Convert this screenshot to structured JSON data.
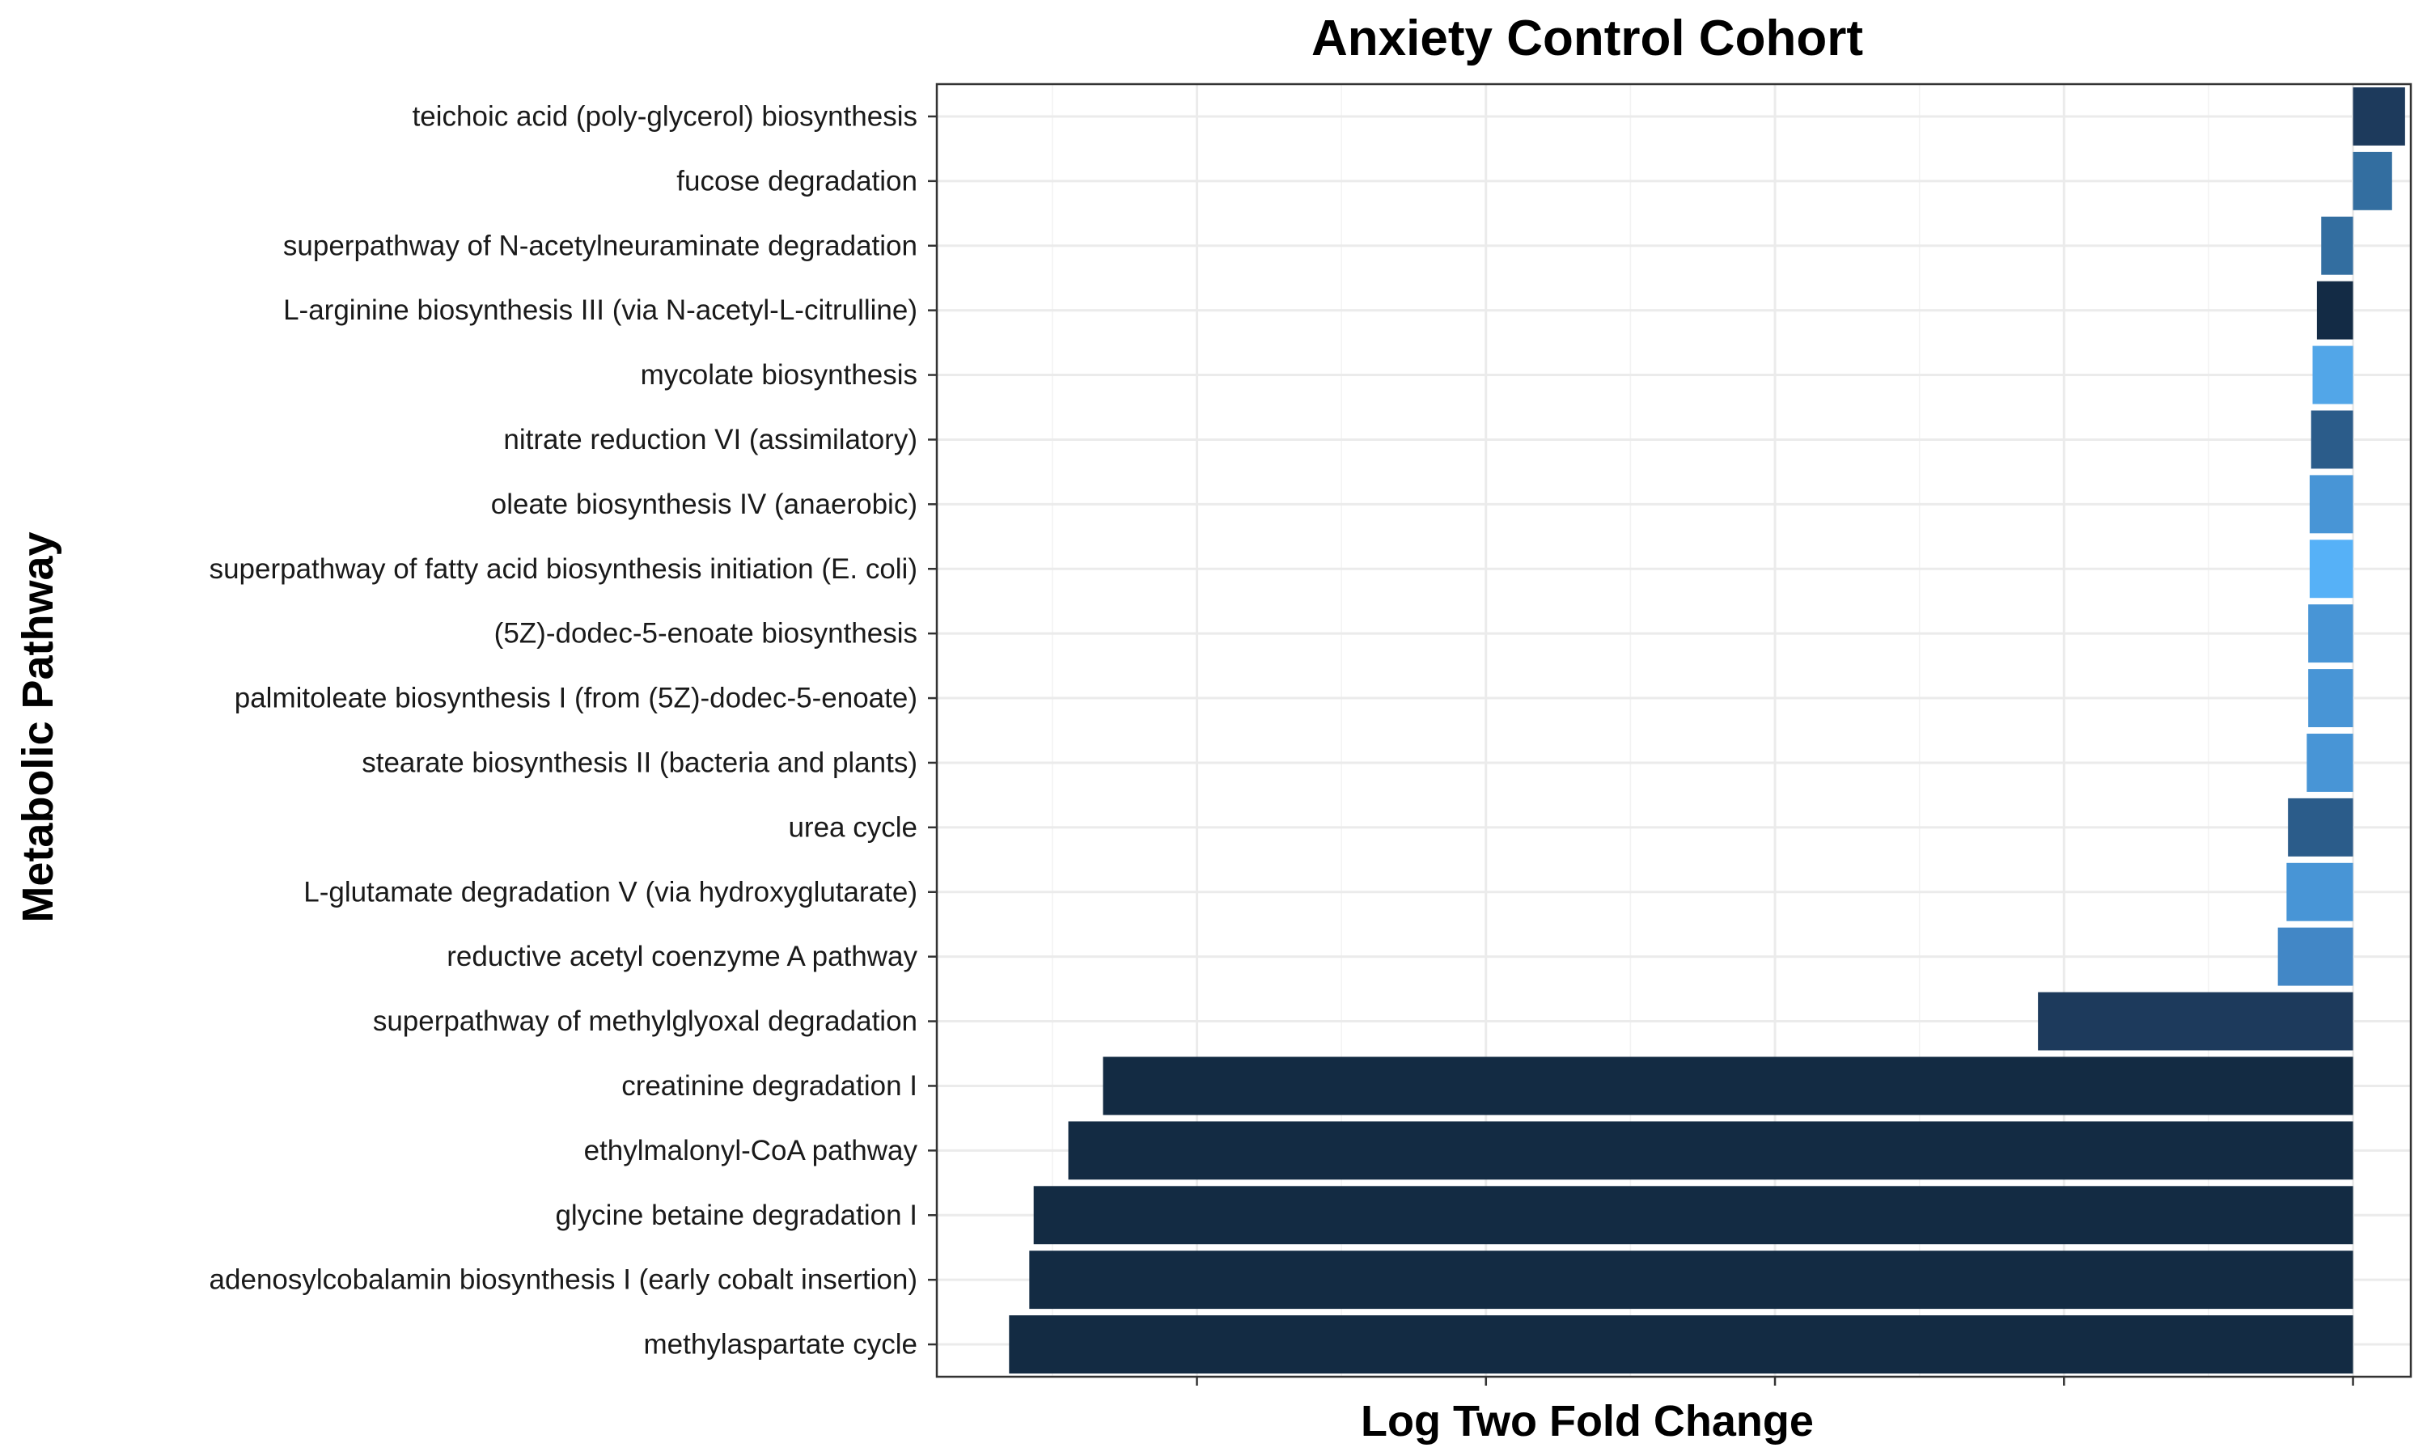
{
  "chart_data": {
    "type": "bar",
    "orientation": "horizontal",
    "title": "Anxiety Control Cohort",
    "xlabel": "Log Two Fold Change",
    "ylabel": "Metabolic Pathway",
    "xlim": [
      -9.8,
      0.4
    ],
    "x_major_breaks": [
      -8,
      -6,
      -4,
      -2,
      0
    ],
    "x_tick_labels_visible": false,
    "grid": true,
    "legend": "none",
    "categories": [
      "teichoic acid (poly-glycerol) biosynthesis",
      "fucose degradation",
      "superpathway of N-acetylneuraminate degradation",
      "L-arginine biosynthesis III (via N-acetyl-L-citrulline)",
      "mycolate biosynthesis",
      "nitrate reduction VI (assimilatory)",
      "oleate biosynthesis IV (anaerobic)",
      "superpathway of fatty acid biosynthesis initiation (E. coli)",
      "(5Z)-dodec-5-enoate biosynthesis",
      "palmitoleate biosynthesis I (from (5Z)-dodec-5-enoate)",
      "stearate biosynthesis II (bacteria and plants)",
      "urea cycle",
      "L-glutamate degradation V (via hydroxyglutarate)",
      "reductive acetyl coenzyme A pathway",
      "superpathway of methylglyoxal degradation",
      "creatinine degradation I",
      "ethylmalonyl-CoA pathway",
      "glycine betaine degradation I",
      "adenosylcobalamin biosynthesis I (early cobalt insertion)",
      "methylaspartate cycle"
    ],
    "values": [
      0.36,
      0.27,
      -0.22,
      -0.25,
      -0.28,
      -0.29,
      -0.3,
      -0.3,
      -0.31,
      -0.31,
      -0.32,
      -0.45,
      -0.46,
      -0.52,
      -2.18,
      -8.65,
      -8.89,
      -9.13,
      -9.16,
      -9.3
    ],
    "colors": [
      "#1d3a5c",
      "#336ea0",
      "#336ea0",
      "#132b45",
      "#52a6e8",
      "#2b5c8a",
      "#4895d6",
      "#56b1f7",
      "#4895d6",
      "#4895d6",
      "#4895d6",
      "#2b5c8a",
      "#4895d6",
      "#4287c6",
      "#1d3a5c",
      "#132b43",
      "#132b43",
      "#132b43",
      "#132b43",
      "#132b43"
    ]
  }
}
